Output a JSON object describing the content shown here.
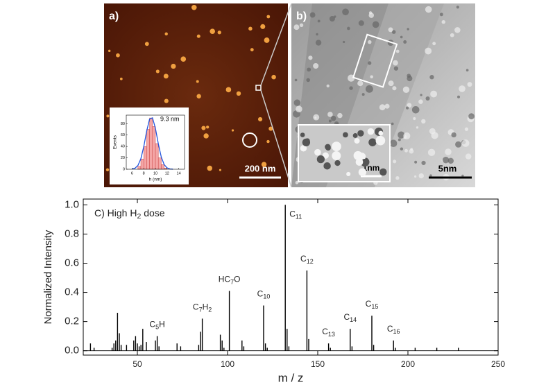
{
  "panels": [
    {
      "label": "a)",
      "scale_bar": "200 nm"
    },
    {
      "label": "b)",
      "scale_bar": "5nm",
      "inset_scale_bar": "1nm"
    }
  ],
  "chart_data": [
    {
      "type": "histogram",
      "annotation": "9.3 nm",
      "x_label": "h (nm)",
      "y_label": "Events",
      "bins": [
        7,
        7.5,
        8,
        8.5,
        9,
        9.5,
        10,
        10.5,
        11,
        11.5,
        12
      ],
      "counts": [
        5,
        18,
        40,
        70,
        90,
        75,
        45,
        20,
        8,
        2
      ],
      "color": "#f4a6a6",
      "fit": {
        "x": [
          6,
          6.5,
          7,
          7.5,
          8,
          8.5,
          9,
          9.5,
          10,
          10.5,
          11,
          11.5,
          12,
          12.5,
          13
        ],
        "values": [
          0.4,
          1.8,
          6.5,
          18.2,
          39.5,
          66.8,
          88,
          90.2,
          72,
          44.8,
          21.7,
          8.2,
          2.4,
          0.5,
          0.1
        ],
        "color": "#2255dd"
      },
      "xlim": [
        5,
        15
      ],
      "xticks": [
        6,
        8,
        10,
        12,
        14
      ],
      "ylim": [
        0,
        95
      ],
      "yticks": [
        0,
        20,
        40,
        60,
        80
      ]
    },
    {
      "type": "bar",
      "title": [
        "C) High H",
        "2",
        " dose"
      ],
      "x_label": "m / z",
      "y_label": "Normalized Intensity",
      "x": [
        24,
        26,
        36,
        37,
        38,
        39,
        40,
        41,
        44,
        48,
        49,
        50,
        51,
        52,
        53,
        55,
        60,
        61,
        62,
        72,
        74,
        84,
        85,
        86,
        96,
        97,
        98,
        101,
        108,
        109,
        120,
        121,
        122,
        132,
        133,
        134,
        144,
        145,
        156,
        157,
        168,
        169,
        180,
        181,
        192,
        193,
        204,
        216,
        228
      ],
      "values": [
        0.05,
        0.02,
        0.02,
        0.05,
        0.07,
        0.26,
        0.12,
        0.04,
        0.04,
        0.07,
        0.1,
        0.05,
        0.03,
        0.04,
        0.15,
        0.06,
        0.07,
        0.1,
        0.03,
        0.05,
        0.03,
        0.04,
        0.13,
        0.22,
        0.11,
        0.07,
        0.02,
        0.41,
        0.07,
        0.03,
        0.31,
        0.05,
        0.02,
        1.0,
        0.15,
        0.03,
        0.55,
        0.08,
        0.05,
        0.02,
        0.15,
        0.03,
        0.24,
        0.04,
        0.07,
        0.02,
        0.02,
        0.02,
        0.02
      ],
      "color": "#000000",
      "xlim": [
        20,
        250
      ],
      "xticks": [
        50,
        100,
        150,
        200,
        250
      ],
      "ylim": [
        -0.03,
        1.04
      ],
      "yticks": [
        {
          "value": 0,
          "label": "0.0"
        },
        0.2,
        0.4,
        0.6,
        0.8,
        {
          "value": 1,
          "label": "1.0"
        }
      ],
      "annotations": [
        {
          "x": 61,
          "text": [
            "C",
            "5",
            "H"
          ]
        },
        {
          "x": 86,
          "text": [
            "C",
            "7",
            "H",
            "2"
          ]
        },
        {
          "x": 101,
          "text": [
            "HC",
            "7",
            "O"
          ]
        },
        {
          "x": 120,
          "text": [
            "C",
            "10"
          ]
        },
        {
          "x": 132,
          "text": [
            "C",
            "11"
          ]
        },
        {
          "x": 144,
          "text": [
            "C",
            "12"
          ]
        },
        {
          "x": 156,
          "text": [
            "C",
            "13"
          ]
        },
        {
          "x": 168,
          "text": [
            "C",
            "14"
          ]
        },
        {
          "x": 180,
          "text": [
            "C",
            "15"
          ]
        },
        {
          "x": 192,
          "text": [
            "C",
            "16"
          ]
        }
      ]
    }
  ]
}
